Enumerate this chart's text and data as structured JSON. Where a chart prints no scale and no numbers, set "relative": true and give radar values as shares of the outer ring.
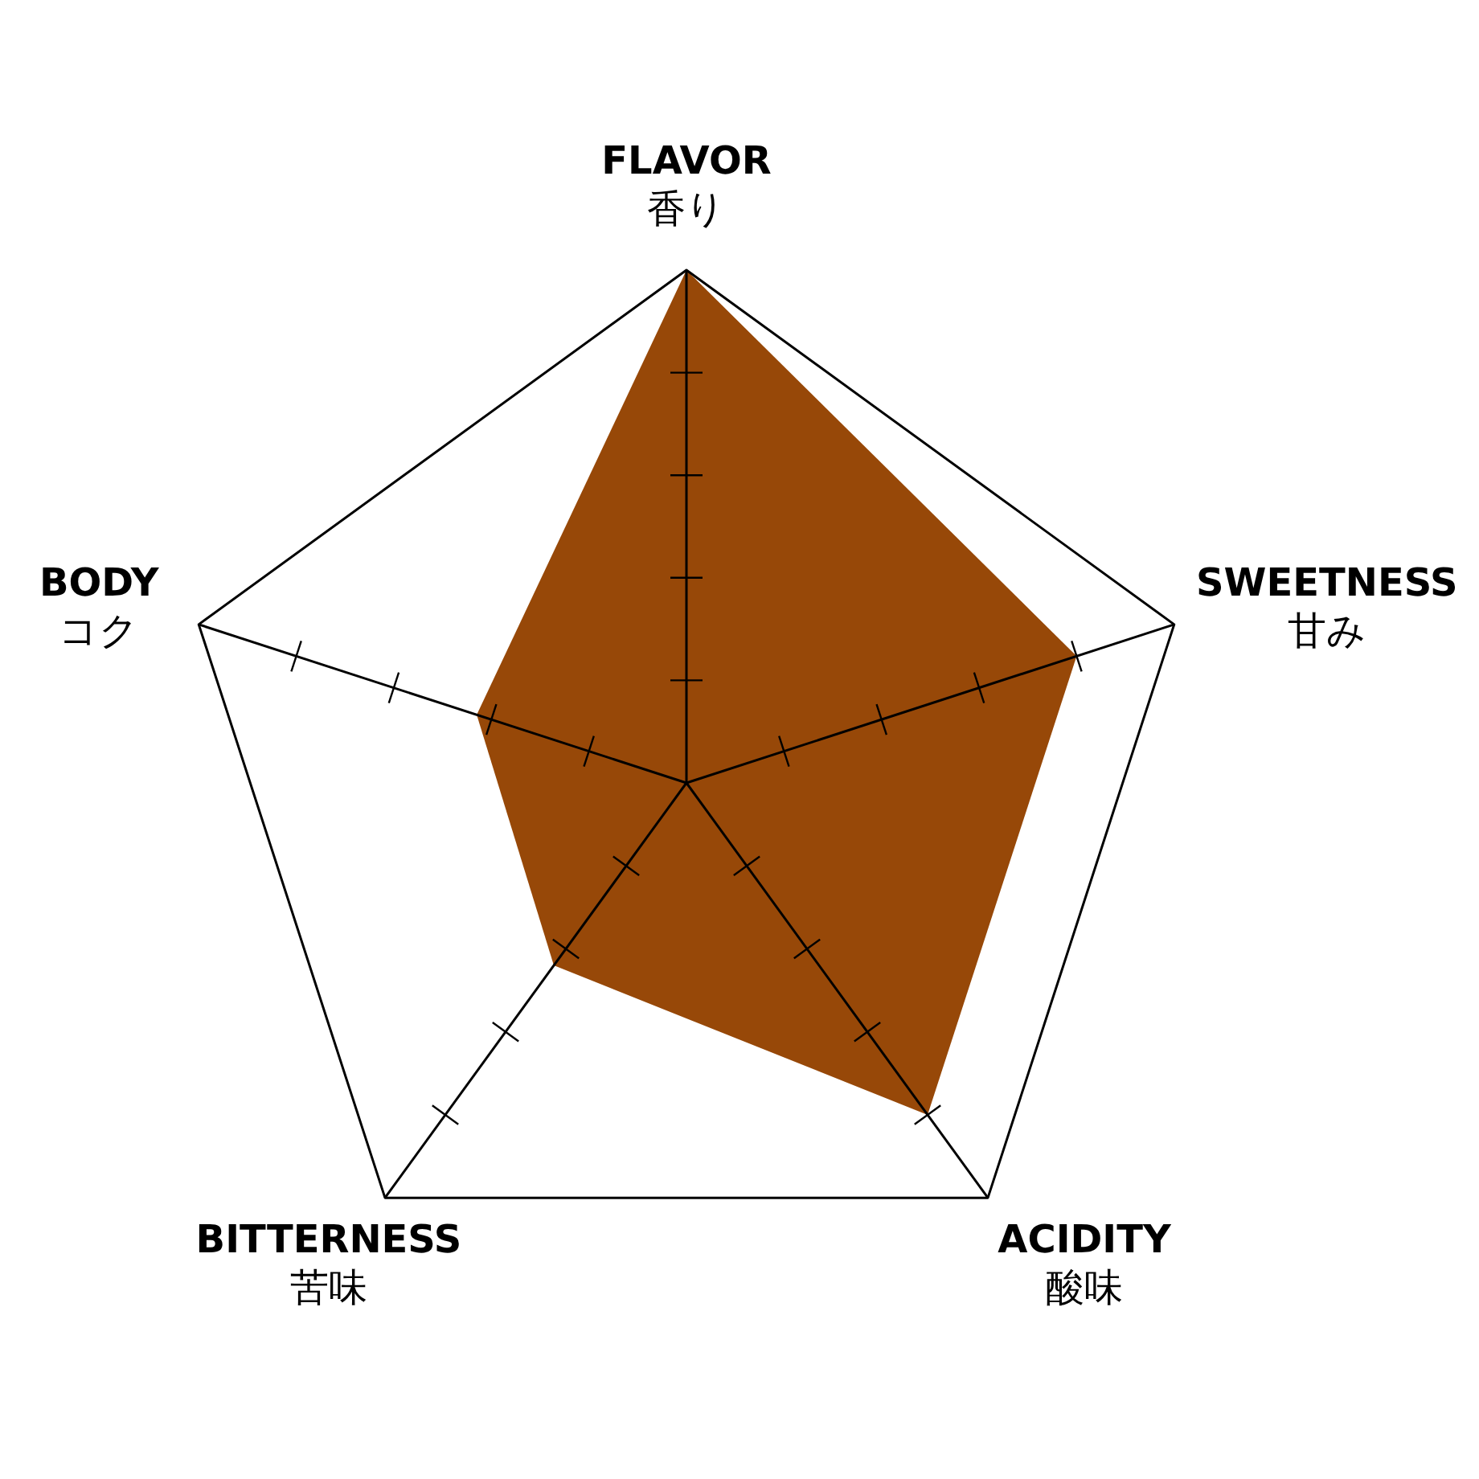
{
  "chart_data": {
    "type": "radar",
    "relative": true,
    "categories": [
      "FLAVOR\n香り",
      "SWEETNESS\n甘み",
      "ACIDITY\n酸味",
      "BITTERNESS\n苦味",
      "BODY\nコク"
    ],
    "series": [
      {
        "color": "#974808",
        "values": [
          1,
          0.8,
          0.8,
          0.44,
          0.43
        ]
      }
    ],
    "grid": true
  }
}
